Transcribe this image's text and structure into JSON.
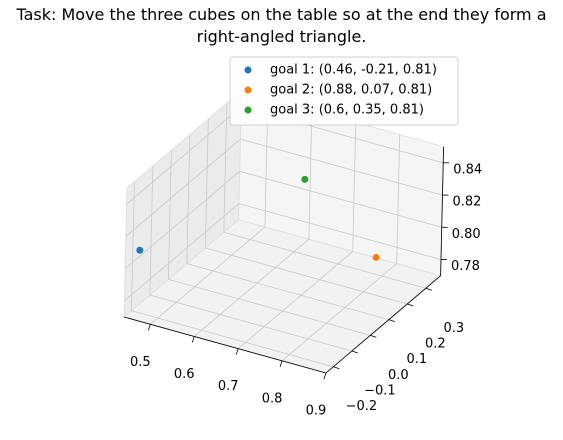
{
  "chart_data": {
    "type": "scatter3d",
    "title": "Task: Move the three cubes on the table so at the end they form a right-angled triangle.",
    "series": [
      {
        "name": "goal 1: (0.46, -0.21, 0.81)",
        "color": "#1f77b4",
        "x": [
          0.46
        ],
        "y": [
          -0.21
        ],
        "z": [
          0.81
        ]
      },
      {
        "name": "goal 2: (0.88, 0.07, 0.81)",
        "color": "#ff7f0e",
        "x": [
          0.88
        ],
        "y": [
          0.07
        ],
        "z": [
          0.81
        ]
      },
      {
        "name": "goal 3: (0.6, 0.35, 0.81)",
        "color": "#2ca02c",
        "x": [
          0.6
        ],
        "y": [
          0.35
        ],
        "z": [
          0.81
        ]
      }
    ],
    "xlim": [
      0.44,
      0.9
    ],
    "ylim": [
      -0.24,
      0.38
    ],
    "zlim": [
      0.77,
      0.85
    ],
    "xticks": [
      0.5,
      0.6,
      0.7,
      0.8,
      0.9
    ],
    "yticks": [
      {
        "value": -0.2,
        "label": "−0.2"
      },
      {
        "value": -0.1,
        "label": "−0.1"
      },
      {
        "value": 0,
        "label": "0.0"
      },
      0.1,
      0.2,
      0.3
    ],
    "zticks": [
      0.78,
      {
        "value": 0.8,
        "label": "0.80"
      },
      0.82,
      0.84
    ],
    "grid": true,
    "legend": "upper right"
  }
}
